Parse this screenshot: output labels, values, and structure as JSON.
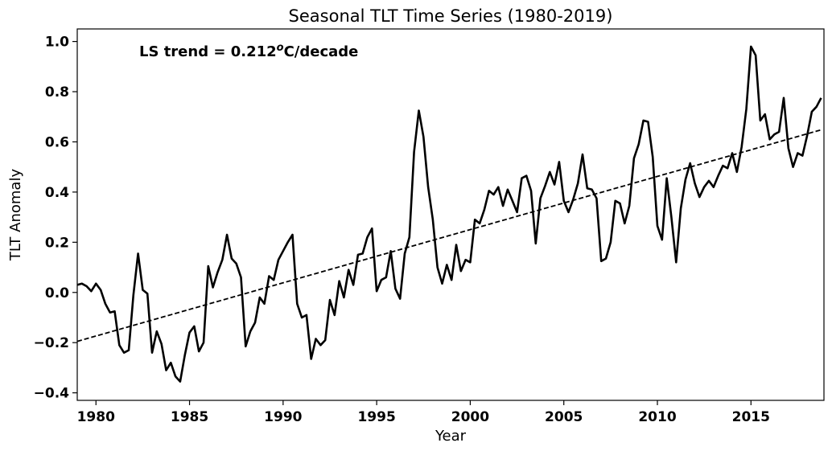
{
  "chart_data": {
    "type": "line",
    "title": "Seasonal TLT Time Series (1980-2019)",
    "xlabel": "Year",
    "ylabel": "TLT Anomaly",
    "xlim": [
      1979.0,
      2018.9
    ],
    "ylim": [
      -0.43,
      1.05
    ],
    "grid": false,
    "annotation": {
      "prefix": "LS trend = 0.212",
      "degree": "o",
      "suffix": "C/decade"
    },
    "x_ticks": [
      {
        "value": 1980,
        "label": "1980"
      },
      {
        "value": 1985,
        "label": "1985"
      },
      {
        "value": 1990,
        "label": "1990"
      },
      {
        "value": 1995,
        "label": "1995"
      },
      {
        "value": 2000,
        "label": "2000"
      },
      {
        "value": 2005,
        "label": "2005"
      },
      {
        "value": 2010,
        "label": "2010"
      },
      {
        "value": 2015,
        "label": "2015"
      }
    ],
    "y_ticks": [
      {
        "value": -0.4,
        "label": "−0.4"
      },
      {
        "value": -0.2,
        "label": "−0.2"
      },
      {
        "value": 0.0,
        "label": "0.0"
      },
      {
        "value": 0.2,
        "label": "0.2"
      },
      {
        "value": 0.4,
        "label": "0.4"
      },
      {
        "value": 0.6,
        "label": "0.6"
      },
      {
        "value": 0.8,
        "label": "0.8"
      },
      {
        "value": 1.0,
        "label": "1.0"
      }
    ],
    "series": [
      {
        "style": "solid",
        "color": "#000000",
        "x": [
          1979.0,
          1979.25,
          1979.5,
          1979.75,
          1980.0,
          1980.25,
          1980.5,
          1980.75,
          1981.0,
          1981.25,
          1981.5,
          1981.75,
          1982.0,
          1982.25,
          1982.5,
          1982.75,
          1983.0,
          1983.25,
          1983.5,
          1983.75,
          1984.0,
          1984.25,
          1984.5,
          1984.75,
          1985.0,
          1985.25,
          1985.5,
          1985.75,
          1986.0,
          1986.25,
          1986.5,
          1986.75,
          1987.0,
          1987.25,
          1987.5,
          1987.75,
          1988.0,
          1988.25,
          1988.5,
          1988.75,
          1989.0,
          1989.25,
          1989.5,
          1989.75,
          1990.0,
          1990.25,
          1990.5,
          1990.75,
          1991.0,
          1991.25,
          1991.5,
          1991.75,
          1992.0,
          1992.25,
          1992.5,
          1992.75,
          1993.0,
          1993.25,
          1993.5,
          1993.75,
          1994.0,
          1994.25,
          1994.5,
          1994.75,
          1995.0,
          1995.25,
          1995.5,
          1995.75,
          1996.0,
          1996.25,
          1996.5,
          1996.75,
          1997.0,
          1997.25,
          1997.5,
          1997.75,
          1998.0,
          1998.25,
          1998.5,
          1998.75,
          1999.0,
          1999.25,
          1999.5,
          1999.75,
          2000.0,
          2000.25,
          2000.5,
          2000.75,
          2001.0,
          2001.25,
          2001.5,
          2001.75,
          2002.0,
          2002.25,
          2002.5,
          2002.75,
          2003.0,
          2003.25,
          2003.5,
          2003.75,
          2004.0,
          2004.25,
          2004.5,
          2004.75,
          2005.0,
          2005.25,
          2005.5,
          2005.75,
          2006.0,
          2006.25,
          2006.5,
          2006.75,
          2007.0,
          2007.25,
          2007.5,
          2007.75,
          2008.0,
          2008.25,
          2008.5,
          2008.75,
          2009.0,
          2009.25,
          2009.5,
          2009.75,
          2010.0,
          2010.25,
          2010.5,
          2010.75,
          2011.0,
          2011.25,
          2011.5,
          2011.75,
          2012.0,
          2012.25,
          2012.5,
          2012.75,
          2013.0,
          2013.25,
          2013.5,
          2013.75,
          2014.0,
          2014.25,
          2014.5,
          2014.75,
          2015.0,
          2015.25,
          2015.5,
          2015.75,
          2016.0,
          2016.25,
          2016.5,
          2016.75,
          2017.0,
          2017.25,
          2017.5,
          2017.75,
          2018.0,
          2018.25,
          2018.5,
          2018.75
        ],
        "values": [
          0.03,
          0.035,
          0.025,
          0.005,
          0.035,
          0.01,
          -0.045,
          -0.08,
          -0.075,
          -0.21,
          -0.24,
          -0.23,
          -0.01,
          0.155,
          0.01,
          -0.005,
          -0.24,
          -0.155,
          -0.205,
          -0.31,
          -0.28,
          -0.335,
          -0.355,
          -0.25,
          -0.16,
          -0.135,
          -0.235,
          -0.2,
          0.105,
          0.02,
          0.08,
          0.13,
          0.23,
          0.135,
          0.115,
          0.06,
          -0.215,
          -0.155,
          -0.12,
          -0.02,
          -0.045,
          0.065,
          0.05,
          0.13,
          0.165,
          0.2,
          0.23,
          -0.045,
          -0.1,
          -0.09,
          -0.265,
          -0.185,
          -0.21,
          -0.19,
          -0.03,
          -0.09,
          0.045,
          -0.02,
          0.09,
          0.03,
          0.15,
          0.155,
          0.22,
          0.255,
          0.005,
          0.05,
          0.06,
          0.165,
          0.015,
          -0.025,
          0.155,
          0.22,
          0.56,
          0.725,
          0.62,
          0.42,
          0.29,
          0.1,
          0.035,
          0.11,
          0.05,
          0.19,
          0.085,
          0.13,
          0.12,
          0.29,
          0.275,
          0.33,
          0.405,
          0.39,
          0.42,
          0.345,
          0.41,
          0.365,
          0.32,
          0.455,
          0.465,
          0.405,
          0.195,
          0.375,
          0.425,
          0.48,
          0.43,
          0.52,
          0.365,
          0.32,
          0.37,
          0.435,
          0.55,
          0.415,
          0.41,
          0.375,
          0.125,
          0.135,
          0.2,
          0.365,
          0.355,
          0.275,
          0.345,
          0.535,
          0.59,
          0.685,
          0.68,
          0.54,
          0.265,
          0.21,
          0.455,
          0.3,
          0.12,
          0.335,
          0.45,
          0.515,
          0.435,
          0.38,
          0.42,
          0.445,
          0.42,
          0.465,
          0.505,
          0.495,
          0.555,
          0.48,
          0.58,
          0.73,
          0.98,
          0.945,
          0.685,
          0.71,
          0.61,
          0.63,
          0.64,
          0.775,
          0.575,
          0.5,
          0.555,
          0.545,
          0.625,
          0.72,
          0.74,
          0.775
        ]
      },
      {
        "style": "dashed",
        "color": "#000000",
        "x": [
          1979.0,
          2018.75
        ],
        "values": [
          -0.195,
          0.648
        ]
      }
    ]
  }
}
